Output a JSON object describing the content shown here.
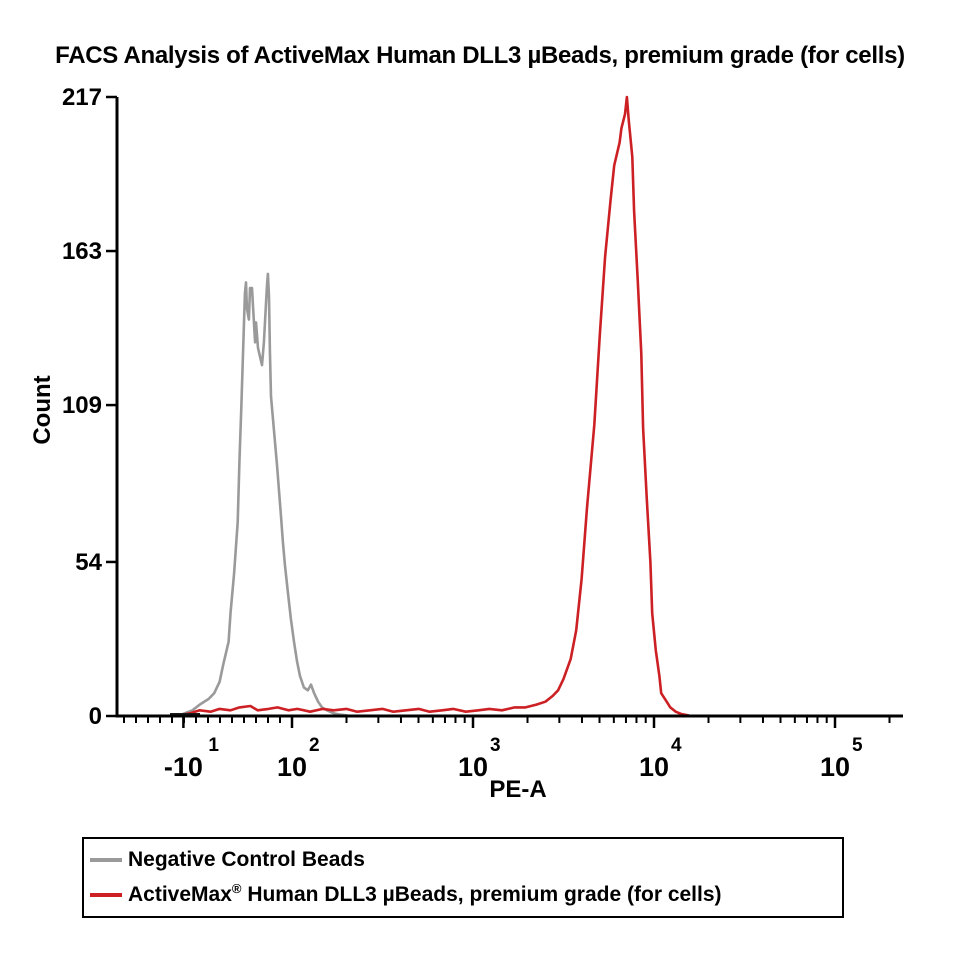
{
  "title": "FACS Analysis of ActiveMax Human DLL3 µBeads, premium grade (for cells)",
  "colors": {
    "gray_series": "#9a9a9a",
    "red_series": "#cc2024",
    "axis": "#000000"
  },
  "chart_data": {
    "type": "line",
    "title": "FACS Analysis of ActiveMax Human DLL3 µBeads, premium grade (for cells)",
    "xlabel": "PE-A",
    "ylabel": "Count",
    "x_scale": "logicle",
    "grid": false,
    "legend_position": "bottom-outside-box",
    "ylim": [
      0,
      217
    ],
    "y_ticks": [
      0,
      54,
      109,
      163,
      217
    ],
    "xlim": [
      1.03,
      5.38
    ],
    "x_ticks": [
      {
        "pos": 1.4,
        "base": "-10",
        "exp": "1"
      },
      {
        "pos": 2,
        "base": "10",
        "exp": "2"
      },
      {
        "pos": 3,
        "base": "10",
        "exp": "3"
      },
      {
        "pos": 4,
        "base": "10",
        "exp": "4"
      },
      {
        "pos": 5,
        "base": "10",
        "exp": "5"
      }
    ],
    "series": [
      {
        "name": "Negative Control Beads",
        "color": "#9a9a9a",
        "peak_count": 155,
        "points": [
          [
            1.37,
            0
          ],
          [
            1.41,
            1
          ],
          [
            1.45,
            2
          ],
          [
            1.49,
            4
          ],
          [
            1.54,
            6
          ],
          [
            1.57,
            8
          ],
          [
            1.6,
            12
          ],
          [
            1.62,
            18
          ],
          [
            1.65,
            26
          ],
          [
            1.66,
            36
          ],
          [
            1.68,
            50
          ],
          [
            1.7,
            68
          ],
          [
            1.71,
            90
          ],
          [
            1.72,
            108
          ],
          [
            1.73,
            128
          ],
          [
            1.74,
            148
          ],
          [
            1.746,
            152
          ],
          [
            1.751,
            143
          ],
          [
            1.762,
            139
          ],
          [
            1.768,
            150
          ],
          [
            1.779,
            150
          ],
          [
            1.785,
            143
          ],
          [
            1.796,
            131
          ],
          [
            1.801,
            138
          ],
          [
            1.812,
            129
          ],
          [
            1.823,
            126
          ],
          [
            1.834,
            123
          ],
          [
            1.845,
            131
          ],
          [
            1.856,
            144
          ],
          [
            1.862,
            151
          ],
          [
            1.867,
            155
          ],
          [
            1.873,
            147
          ],
          [
            1.878,
            128
          ],
          [
            1.884,
            112
          ],
          [
            1.895,
            104
          ],
          [
            1.906,
            96
          ],
          [
            1.917,
            88
          ],
          [
            1.928,
            79
          ],
          [
            1.939,
            70
          ],
          [
            1.95,
            61
          ],
          [
            1.961,
            53
          ],
          [
            1.978,
            43
          ],
          [
            1.994,
            34
          ],
          [
            2.011,
            26
          ],
          [
            2.028,
            19
          ],
          [
            2.044,
            14
          ],
          [
            2.066,
            10
          ],
          [
            2.088,
            9
          ],
          [
            2.105,
            11
          ],
          [
            2.122,
            8
          ],
          [
            2.144,
            5
          ],
          [
            2.166,
            3
          ],
          [
            2.193,
            2
          ],
          [
            2.227,
            1
          ],
          [
            2.265,
            0.5
          ],
          [
            2.304,
            0.2
          ]
        ]
      },
      {
        "name": "ActiveMax® Human DLL3 µBeads, premium grade (for cells)",
        "color": "#cc2024",
        "peak_count": 217,
        "points": [
          [
            1.38,
            0.3
          ],
          [
            1.44,
            1
          ],
          [
            1.49,
            2
          ],
          [
            1.55,
            1.5
          ],
          [
            1.6,
            2.5
          ],
          [
            1.66,
            2
          ],
          [
            1.71,
            3
          ],
          [
            1.77,
            3.5
          ],
          [
            1.81,
            2
          ],
          [
            1.87,
            2.5
          ],
          [
            1.92,
            3
          ],
          [
            1.98,
            2
          ],
          [
            2.03,
            2.5
          ],
          [
            2.1,
            1.5
          ],
          [
            2.17,
            2.5
          ],
          [
            2.23,
            2
          ],
          [
            2.3,
            2.5
          ],
          [
            2.36,
            1.5
          ],
          [
            2.43,
            2
          ],
          [
            2.5,
            2.5
          ],
          [
            2.56,
            1.5
          ],
          [
            2.63,
            2
          ],
          [
            2.7,
            2.5
          ],
          [
            2.76,
            1.5
          ],
          [
            2.83,
            2
          ],
          [
            2.89,
            2.5
          ],
          [
            2.96,
            1.5
          ],
          [
            3.03,
            2
          ],
          [
            3.09,
            2.5
          ],
          [
            3.16,
            2
          ],
          [
            3.23,
            3
          ],
          [
            3.29,
            3
          ],
          [
            3.35,
            4
          ],
          [
            3.4,
            5
          ],
          [
            3.44,
            7
          ],
          [
            3.47,
            9
          ],
          [
            3.5,
            13
          ],
          [
            3.54,
            20
          ],
          [
            3.57,
            30
          ],
          [
            3.6,
            48
          ],
          [
            3.63,
            73
          ],
          [
            3.67,
            102
          ],
          [
            3.7,
            133
          ],
          [
            3.73,
            161
          ],
          [
            3.76,
            181
          ],
          [
            3.78,
            193
          ],
          [
            3.81,
            201
          ],
          [
            3.82,
            206
          ],
          [
            3.84,
            211
          ],
          [
            3.85,
            217
          ],
          [
            3.86,
            209
          ],
          [
            3.88,
            196
          ],
          [
            3.89,
            177
          ],
          [
            3.91,
            153
          ],
          [
            3.93,
            127
          ],
          [
            3.94,
            101
          ],
          [
            3.96,
            76
          ],
          [
            3.98,
            54
          ],
          [
            3.99,
            36
          ],
          [
            4.01,
            23
          ],
          [
            4.03,
            14
          ],
          [
            4.04,
            8
          ],
          [
            4.07,
            5
          ],
          [
            4.09,
            3
          ],
          [
            4.12,
            1.5
          ],
          [
            4.15,
            0.7
          ],
          [
            4.19,
            0.2
          ]
        ]
      }
    ]
  },
  "legend": {
    "items": [
      {
        "label": "Negative Control Beads",
        "color": "#9a9a9a"
      },
      {
        "label": "ActiveMax® Human DLL3 µBeads, premium grade (for cells)",
        "color": "#cc2024"
      }
    ]
  }
}
